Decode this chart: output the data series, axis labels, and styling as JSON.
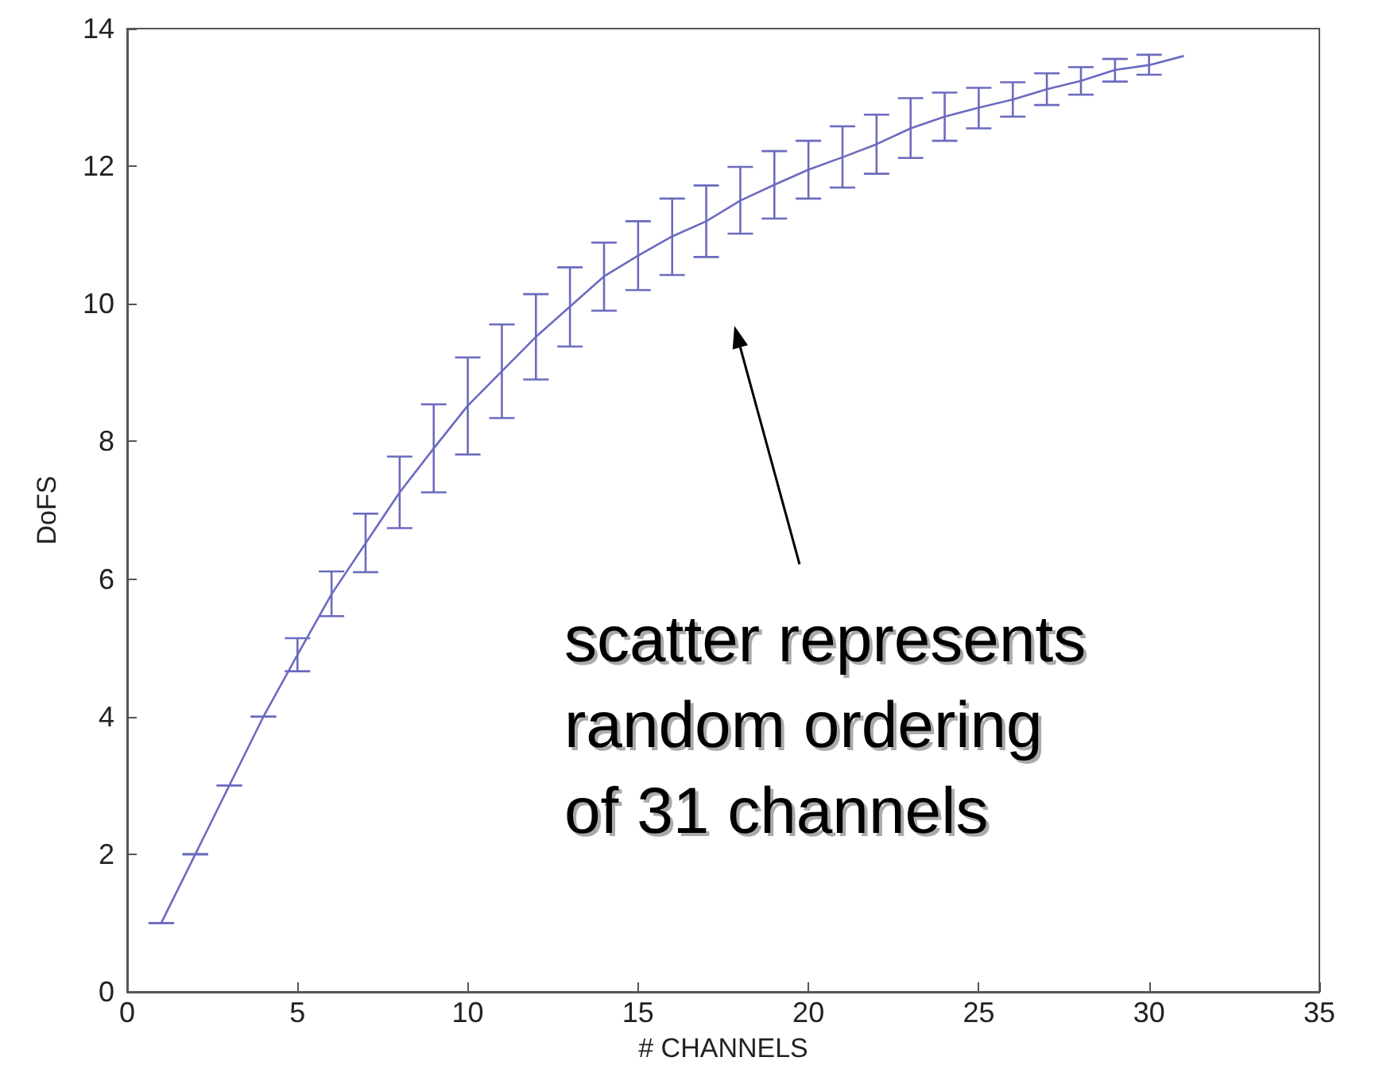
{
  "chart_data": {
    "type": "line",
    "xlabel": "# CHANNELS",
    "ylabel": "DoFS",
    "x": [
      1,
      2,
      3,
      4,
      5,
      6,
      7,
      8,
      9,
      10,
      11,
      12,
      13,
      14,
      15,
      16,
      17,
      18,
      19,
      20,
      21,
      22,
      23,
      24,
      25,
      26,
      27,
      28,
      29,
      30,
      31
    ],
    "series": [
      {
        "color": "#6b6bc0",
        "values": [
          1,
          2,
          3,
          4,
          4.9,
          5.78,
          6.52,
          7.26,
          7.9,
          8.52,
          9.02,
          9.52,
          9.96,
          10.4,
          10.7,
          10.98,
          11.2,
          11.5,
          11.73,
          11.95,
          12.13,
          12.32,
          12.55,
          12.72,
          12.85,
          12.97,
          13.12,
          13.24,
          13.4,
          13.47,
          13.6
        ],
        "errors": [
          0,
          0,
          0,
          0,
          [
            4.66,
            5.14
          ],
          [
            5.46,
            6.11
          ],
          [
            6.1,
            6.95
          ],
          [
            6.74,
            7.78
          ],
          [
            7.26,
            8.54
          ],
          [
            7.81,
            9.22
          ],
          [
            8.34,
            9.7
          ],
          [
            8.9,
            10.14
          ],
          [
            9.38,
            10.53
          ],
          [
            9.9,
            10.89
          ],
          [
            10.2,
            11.2
          ],
          [
            10.42,
            11.53
          ],
          [
            10.68,
            11.72
          ],
          [
            11.02,
            11.99
          ],
          [
            11.24,
            12.22
          ],
          [
            11.53,
            12.37
          ],
          [
            11.69,
            12.58
          ],
          [
            11.89,
            12.75
          ],
          [
            12.12,
            12.99
          ],
          [
            12.37,
            13.07
          ],
          [
            12.55,
            13.14
          ],
          [
            12.72,
            13.22
          ],
          [
            12.89,
            13.35
          ],
          [
            13.04,
            13.44
          ],
          [
            13.23,
            13.56
          ],
          [
            13.33,
            13.62
          ],
          null
        ]
      }
    ],
    "xlim": [
      0,
      35
    ],
    "xticks": [
      0,
      5,
      10,
      15,
      20,
      25,
      30,
      35
    ],
    "ylim": [
      0,
      14
    ],
    "yticks": [
      0,
      2,
      4,
      6,
      8,
      10,
      12,
      14
    ],
    "grid": false,
    "marker": "none",
    "line_style": "solid",
    "annotations": [
      "scatter represents\nrandom ordering\nof 31 channels"
    ]
  }
}
